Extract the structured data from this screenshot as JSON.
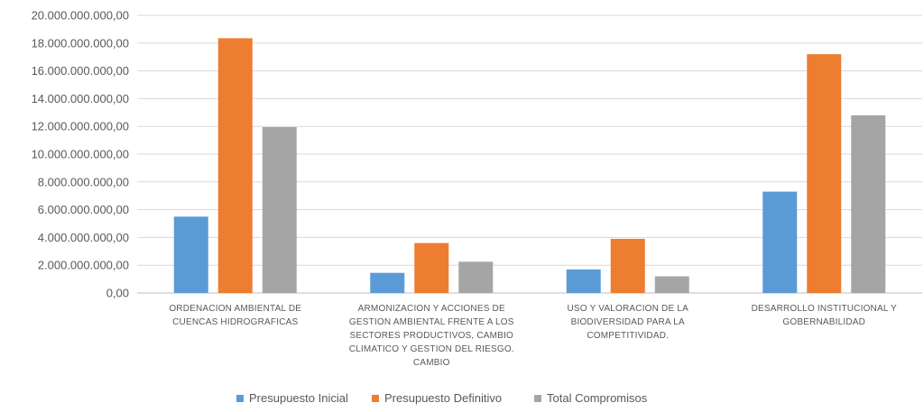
{
  "chart_data": {
    "type": "bar",
    "title": "",
    "xlabel": "",
    "ylabel": "",
    "ylim": [
      0,
      20000000000
    ],
    "yticks": [
      "0,00",
      "2.000.000.000,00",
      "4.000.000.000,00",
      "6.000.000.000,00",
      "8.000.000.000,00",
      "10.000.000.000,00",
      "12.000.000.000,00",
      "14.000.000.000,00",
      "16.000.000.000,00",
      "18.000.000.000,00",
      "20.000.000.000,00"
    ],
    "grid": true,
    "legend_position": "bottom",
    "categories": [
      [
        "ORDENACION AMBIENTAL DE",
        "CUENCAS HIDROGRAFICAS"
      ],
      [
        "ARMONIZACION Y ACCIONES DE",
        "GESTION AMBIENTAL FRENTE A LOS",
        "SECTORES PRODUCTIVOS, CAMBIO",
        "CLIMATICO Y GESTION DEL RIESGO.",
        "CAMBIO"
      ],
      [
        "USO Y VALORACION DE LA",
        "BIODIVERSIDAD PARA LA",
        "COMPETITIVIDAD."
      ],
      [
        "DESARROLLO INSTITUCIONAL Y",
        "GOBERNABILIDAD"
      ]
    ],
    "series": [
      {
        "name": "Presupuesto Inicial",
        "color": "#5b9bd5",
        "values": [
          5500000000,
          1450000000,
          1700000000,
          7300000000
        ]
      },
      {
        "name": "Presupuesto Definitivo",
        "color": "#ed7d31",
        "values": [
          18350000000,
          3600000000,
          3900000000,
          17200000000
        ]
      },
      {
        "name": "Total Compromisos",
        "color": "#a5a5a5",
        "values": [
          11950000000,
          2250000000,
          1200000000,
          12800000000
        ]
      }
    ]
  }
}
